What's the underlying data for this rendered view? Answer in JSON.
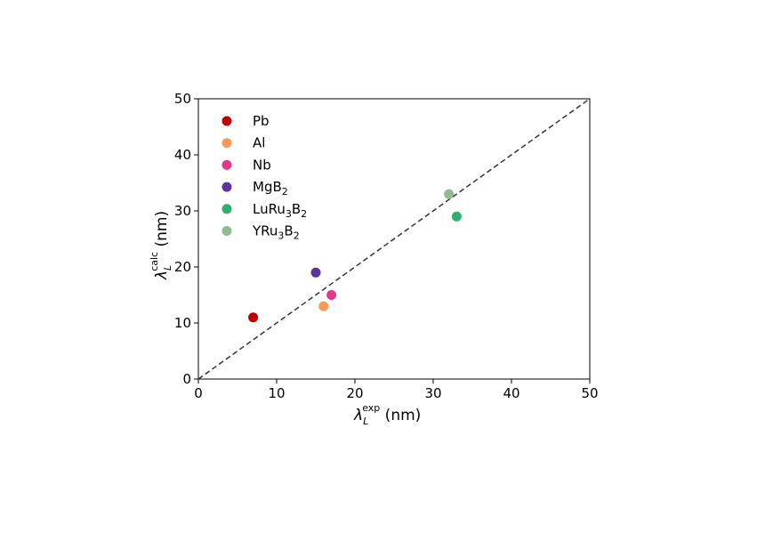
{
  "chart_data": {
    "type": "scatter",
    "title": "",
    "xlabel": {
      "symbol": "λ",
      "sub": "L",
      "sup": "exp",
      "unit": "(nm)"
    },
    "ylabel": {
      "symbol": "λ",
      "sub": "L",
      "sup": "calc",
      "unit": "(nm)"
    },
    "xlim": [
      0,
      50
    ],
    "ylim": [
      0,
      50
    ],
    "xticks": [
      0,
      10,
      20,
      30,
      40,
      50
    ],
    "yticks": [
      0,
      10,
      20,
      30,
      40,
      50
    ],
    "grid": false,
    "legend_position": "top-left",
    "reference_line": {
      "style": "dashed",
      "from": [
        0,
        0
      ],
      "to": [
        50,
        50
      ],
      "color": "#333333"
    },
    "series": [
      {
        "name": "Pb",
        "name_parts": [
          [
            "Pb",
            ""
          ]
        ],
        "color": "#c00000",
        "x": [
          7
        ],
        "y": [
          11
        ]
      },
      {
        "name": "Al",
        "name_parts": [
          [
            "Al",
            ""
          ]
        ],
        "color": "#f79a5a",
        "x": [
          16
        ],
        "y": [
          13
        ]
      },
      {
        "name": "Nb",
        "name_parts": [
          [
            "Nb",
            ""
          ]
        ],
        "color": "#e0398a",
        "x": [
          17
        ],
        "y": [
          15
        ]
      },
      {
        "name": "MgB2",
        "name_parts": [
          [
            "MgB",
            ""
          ],
          [
            "2",
            "sub"
          ]
        ],
        "color": "#5b34a0",
        "x": [
          15
        ],
        "y": [
          19
        ]
      },
      {
        "name": "LuRu3B2",
        "name_parts": [
          [
            "LuRu",
            ""
          ],
          [
            "3",
            "sub"
          ],
          [
            "B",
            ""
          ],
          [
            "2",
            "sub"
          ]
        ],
        "color": "#2eb06c",
        "x": [
          33
        ],
        "y": [
          29
        ]
      },
      {
        "name": "YRu3B2",
        "name_parts": [
          [
            "YRu",
            ""
          ],
          [
            "3",
            "sub"
          ],
          [
            "B",
            ""
          ],
          [
            "2",
            "sub"
          ]
        ],
        "color": "#8fbc8f",
        "x": [
          32
        ],
        "y": [
          33
        ]
      }
    ]
  }
}
